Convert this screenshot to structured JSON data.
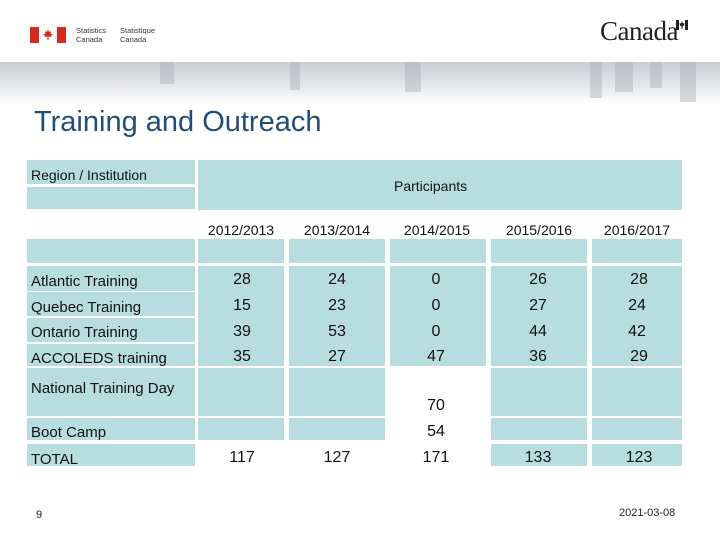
{
  "header": {
    "agency_en_line1": "Statistics",
    "agency_en_line2": "Canada",
    "agency_fr_line1": "Statistique",
    "agency_fr_line2": "Canada",
    "wordmark": "Canada"
  },
  "title": "Training and Outreach",
  "table": {
    "row_header": "Region / Institution",
    "group_header": "Participants",
    "years": [
      "2012/2013",
      "2013/2014",
      "2014/2015",
      "2015/2016",
      "2016/2017"
    ],
    "rows": [
      {
        "label": "Atlantic Training",
        "values": [
          "28",
          "24",
          "0",
          "26",
          "28"
        ]
      },
      {
        "label": "Quebec Training",
        "values": [
          "15",
          "23",
          "0",
          "27",
          "24"
        ]
      },
      {
        "label": "Ontario Training",
        "values": [
          "39",
          "53",
          "0",
          "44",
          "42"
        ]
      },
      {
        "label": "ACCOLEDS training",
        "values": [
          "35",
          "27",
          "47",
          "36",
          "29"
        ]
      },
      {
        "label": "National Training Day",
        "values": [
          "",
          "",
          "70",
          "",
          ""
        ]
      },
      {
        "label": "Boot Camp",
        "values": [
          "",
          "",
          "54",
          "",
          ""
        ]
      },
      {
        "label": "TOTAL",
        "values": [
          "117",
          "127",
          "171",
          "133",
          "123"
        ]
      }
    ]
  },
  "footer": {
    "page_number": "9",
    "date": "2021-03-08"
  },
  "colors": {
    "title": "#1f4e79",
    "cell": "#b8dde1",
    "flag_red": "#d52b1e"
  }
}
